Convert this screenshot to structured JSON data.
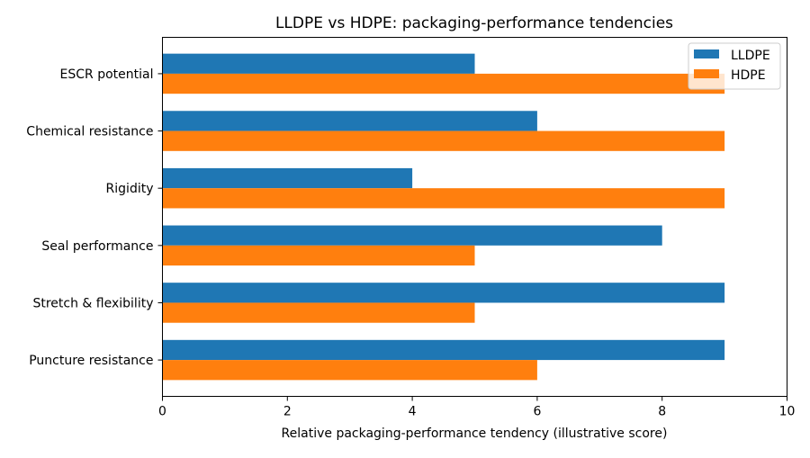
{
  "chart_data": {
    "type": "bar",
    "orientation": "horizontal",
    "title": "LLDPE vs HDPE: packaging-performance tendencies",
    "xlabel": "Relative packaging-performance tendency (illustrative score)",
    "ylabel": "",
    "xlim": [
      0,
      10
    ],
    "xticks": [
      0,
      2,
      4,
      6,
      8,
      10
    ],
    "grid": false,
    "legend_position": "top-right",
    "categories": [
      "Puncture resistance",
      "Stretch & flexibility",
      "Seal performance",
      "Rigidity",
      "Chemical resistance",
      "ESCR potential"
    ],
    "series": [
      {
        "name": "LLDPE",
        "color": "#1f77b4",
        "values": [
          9,
          9,
          8,
          4,
          6,
          5
        ]
      },
      {
        "name": "HDPE",
        "color": "#ff7f0e",
        "values": [
          6,
          5,
          5,
          9,
          9,
          9
        ]
      }
    ]
  }
}
